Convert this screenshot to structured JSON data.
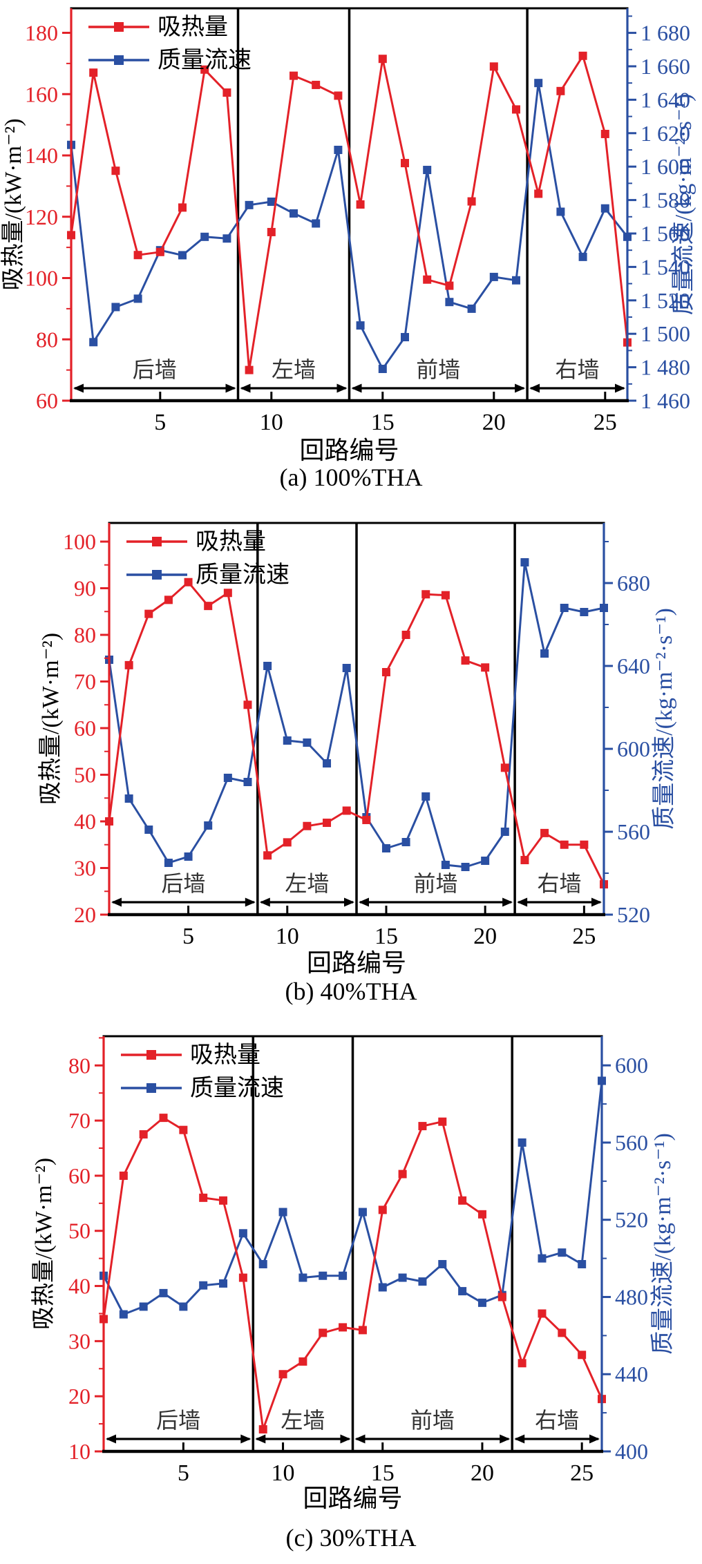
{
  "page": {
    "bg": "#ffffff"
  },
  "colors": {
    "heat": "#e32128",
    "flux": "#2a4fa2",
    "axis_black": "#000000",
    "wall_text": "#333333"
  },
  "legend": {
    "heat_label": "吸热量",
    "flux_label": "质量流速"
  },
  "chart_data": [
    {
      "id": "a",
      "type": "line",
      "caption": "(a) 100%THA",
      "xlabel": "回路编号",
      "ylabel_left": "吸热量/(kW·m⁻²)",
      "ylabel_right": "质量流速/(kg·m⁻²·s⁻¹)",
      "x_range": [
        1,
        26
      ],
      "x_ticks": [
        5,
        10,
        15,
        20,
        25
      ],
      "left_axis": {
        "min": 60,
        "max": 188,
        "minor_step": 10,
        "ticks": [
          60,
          80,
          100,
          120,
          140,
          160,
          180
        ],
        "labels": [
          "60",
          "80",
          "100",
          "120",
          "140",
          "160",
          "180"
        ]
      },
      "right_axis": {
        "min": 1460,
        "max": 1694.7,
        "minor_step": 10,
        "ticks": [
          1460,
          1480,
          1500,
          1520,
          1540,
          1560,
          1580,
          1600,
          1620,
          1640,
          1660,
          1680
        ],
        "labels": [
          "1 460",
          "1 480",
          "1 500",
          "1 520",
          "1 540",
          "1 560",
          "1 580",
          "1 600",
          "1 620",
          "1 640",
          "1 660",
          "1 680"
        ]
      },
      "dividers": [
        8.5,
        13.5,
        21.5
      ],
      "wall_sections": [
        {
          "label": "后墙",
          "from": 1,
          "to": 8.5
        },
        {
          "label": "左墙",
          "from": 8.5,
          "to": 13.5
        },
        {
          "label": "前墙",
          "from": 13.5,
          "to": 21.5
        },
        {
          "label": "右墙",
          "from": 21.5,
          "to": 26
        }
      ],
      "series": [
        {
          "name": "吸热量",
          "axis": "left",
          "color_key": "heat",
          "values": [
            114,
            167,
            135,
            107.5,
            108.5,
            123,
            168,
            160.5,
            70,
            115,
            166,
            163,
            159.5,
            124,
            171.5,
            137.5,
            99.5,
            97.5,
            125,
            169,
            155,
            127.5,
            161,
            172.5,
            147,
            79
          ]
        },
        {
          "name": "质量流速",
          "axis": "right",
          "color_key": "flux",
          "values": [
            1613,
            1495,
            1516,
            1521,
            1550,
            1547,
            1558,
            1557,
            1577,
            1579,
            1572,
            1566,
            1610,
            1505,
            1479,
            1498,
            1598,
            1519,
            1515,
            1534,
            1532,
            1650,
            1573,
            1546,
            1575,
            1558
          ]
        }
      ]
    },
    {
      "id": "b",
      "type": "line",
      "caption": "(b) 40%THA",
      "xlabel": "回路编号",
      "ylabel_left": "吸热量/(kW·m⁻²)",
      "ylabel_right": "质量流速/(kg·m⁻²·s⁻¹)",
      "x_range": [
        1,
        26
      ],
      "x_ticks": [
        5,
        10,
        15,
        20,
        25
      ],
      "left_axis": {
        "min": 20,
        "max": 104,
        "minor_step": 5,
        "ticks": [
          20,
          30,
          40,
          50,
          60,
          70,
          80,
          90,
          100
        ],
        "labels": [
          "20",
          "30",
          "40",
          "50",
          "60",
          "70",
          "80",
          "90",
          "100"
        ]
      },
      "right_axis": {
        "min": 520,
        "max": 709,
        "minor_step": 20,
        "ticks": [
          520,
          560,
          600,
          640,
          680
        ],
        "labels": [
          "520",
          "560",
          "600",
          "640",
          "680"
        ]
      },
      "dividers": [
        8.5,
        13.5,
        21.5
      ],
      "wall_sections": [
        {
          "label": "后墙",
          "from": 1,
          "to": 8.5
        },
        {
          "label": "左墙",
          "from": 8.5,
          "to": 13.5
        },
        {
          "label": "前墙",
          "from": 13.5,
          "to": 21.5
        },
        {
          "label": "右墙",
          "from": 21.5,
          "to": 26
        }
      ],
      "series": [
        {
          "name": "吸热量",
          "axis": "left",
          "color_key": "heat",
          "values": [
            40,
            73.5,
            84.5,
            87.5,
            91.3,
            86.2,
            89,
            65,
            32.7,
            35.5,
            39,
            39.7,
            42.3,
            40.3,
            72,
            80,
            88.7,
            88.5,
            74.5,
            73,
            51.5,
            31.7,
            37.5,
            35,
            35,
            26.5
          ]
        },
        {
          "name": "质量流速",
          "axis": "right",
          "color_key": "flux",
          "values": [
            643,
            576,
            561,
            545,
            548,
            563,
            586,
            584,
            640,
            604,
            603,
            593,
            639,
            567,
            552,
            555,
            577,
            544,
            543,
            546,
            560,
            690,
            646,
            668,
            666,
            668
          ]
        }
      ]
    },
    {
      "id": "c",
      "type": "line",
      "caption": "(c) 30%THA",
      "xlabel": "回路编号",
      "ylabel_left": "吸热量/(kW·m⁻²)",
      "ylabel_right": "质量流速/(kg·m⁻²·s⁻¹)",
      "x_range": [
        1,
        26
      ],
      "x_ticks": [
        5,
        10,
        15,
        20,
        25
      ],
      "left_axis": {
        "min": 10,
        "max": 85.3,
        "minor_step": 5,
        "ticks": [
          10,
          20,
          30,
          40,
          50,
          60,
          70,
          80
        ],
        "labels": [
          "10",
          "20",
          "30",
          "40",
          "50",
          "60",
          "70",
          "80"
        ]
      },
      "right_axis": {
        "min": 400,
        "max": 615.1,
        "minor_step": 20,
        "ticks": [
          400,
          440,
          480,
          520,
          560,
          600
        ],
        "labels": [
          "400",
          "440",
          "480",
          "520",
          "560",
          "600"
        ]
      },
      "dividers": [
        8.5,
        13.5,
        21.5
      ],
      "wall_sections": [
        {
          "label": "后墙",
          "from": 1,
          "to": 8.5
        },
        {
          "label": "左墙",
          "from": 8.5,
          "to": 13.5
        },
        {
          "label": "前墙",
          "from": 13.5,
          "to": 21.5
        },
        {
          "label": "右墙",
          "from": 21.5,
          "to": 26
        }
      ],
      "series": [
        {
          "name": "吸热量",
          "axis": "left",
          "color_key": "heat",
          "values": [
            34,
            60,
            67.5,
            70.5,
            68.3,
            56,
            55.5,
            41.5,
            14,
            24,
            26.3,
            31.5,
            32.5,
            32,
            53.8,
            60.3,
            69,
            69.8,
            55.5,
            53,
            38,
            26,
            35,
            31.5,
            27.5,
            19.5
          ]
        },
        {
          "name": "质量流速",
          "axis": "right",
          "color_key": "flux",
          "values": [
            491,
            471,
            475,
            482,
            475,
            486,
            487,
            513,
            497,
            524,
            490,
            491,
            491,
            524,
            485,
            490,
            488,
            497,
            483,
            477,
            481,
            560,
            500,
            503,
            497,
            592
          ]
        }
      ]
    }
  ]
}
